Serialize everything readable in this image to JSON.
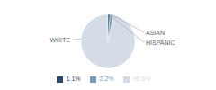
{
  "chart_data": {
    "type": "pie",
    "categories": [
      "WHITE",
      "ASIAN",
      "HISPANIC"
    ],
    "values": [
      96.6,
      2.2,
      1.1
    ],
    "value_labels": [
      "96.6%",
      "2.2%",
      "1.1%"
    ],
    "colors": [
      "#d4dce8",
      "#7a9bb5",
      "#2b4a6b"
    ],
    "legend": "bottom"
  }
}
